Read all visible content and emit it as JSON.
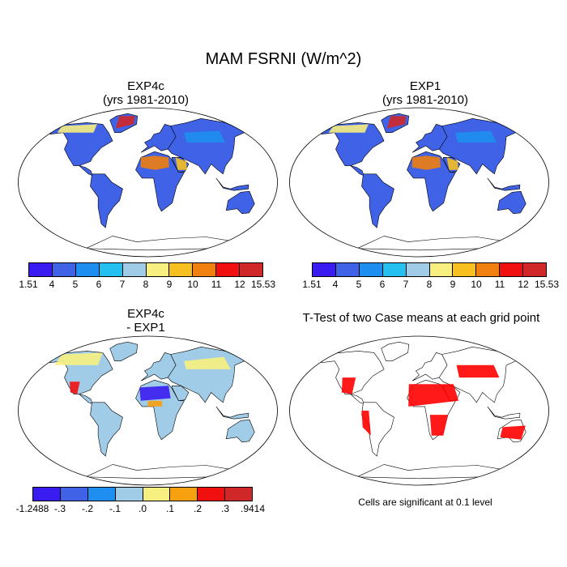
{
  "title": "MAM FSRNI (W/m^2)",
  "panels": {
    "p1": {
      "title": "EXP4c",
      "subtitle": "(yrs 1981-2010)"
    },
    "p2": {
      "title": "EXP1",
      "subtitle": "(yrs 1981-2010)"
    },
    "p3": {
      "title": "EXP4c",
      "subtitle": "- EXP1"
    },
    "p4": {
      "title": "T-Test of two Case means at each grid point"
    }
  },
  "colorbar_top": {
    "colors": [
      "#3b1cf0",
      "#3f62e6",
      "#1e8ff0",
      "#23c0f0",
      "#a0cce8",
      "#f7f080",
      "#f7c020",
      "#f08010",
      "#f01010",
      "#d02828"
    ],
    "labels": [
      "1.51",
      "4",
      "5",
      "6",
      "7",
      "8",
      "9",
      "10",
      "11",
      "12",
      "15.53"
    ]
  },
  "colorbar_diff": {
    "colors": [
      "#3b1cf0",
      "#3f62e6",
      "#1e8ff0",
      "#a0cce8",
      "#f7f080",
      "#f7a010",
      "#f01010",
      "#d02828"
    ],
    "labels": [
      "-1.2488",
      "-.3",
      "-.2",
      "-.1",
      ".0",
      ".1",
      ".2",
      ".3",
      ".9414"
    ]
  },
  "significance": {
    "color": "#ff0000",
    "note": "Cells are significant at 0.1 level"
  }
}
